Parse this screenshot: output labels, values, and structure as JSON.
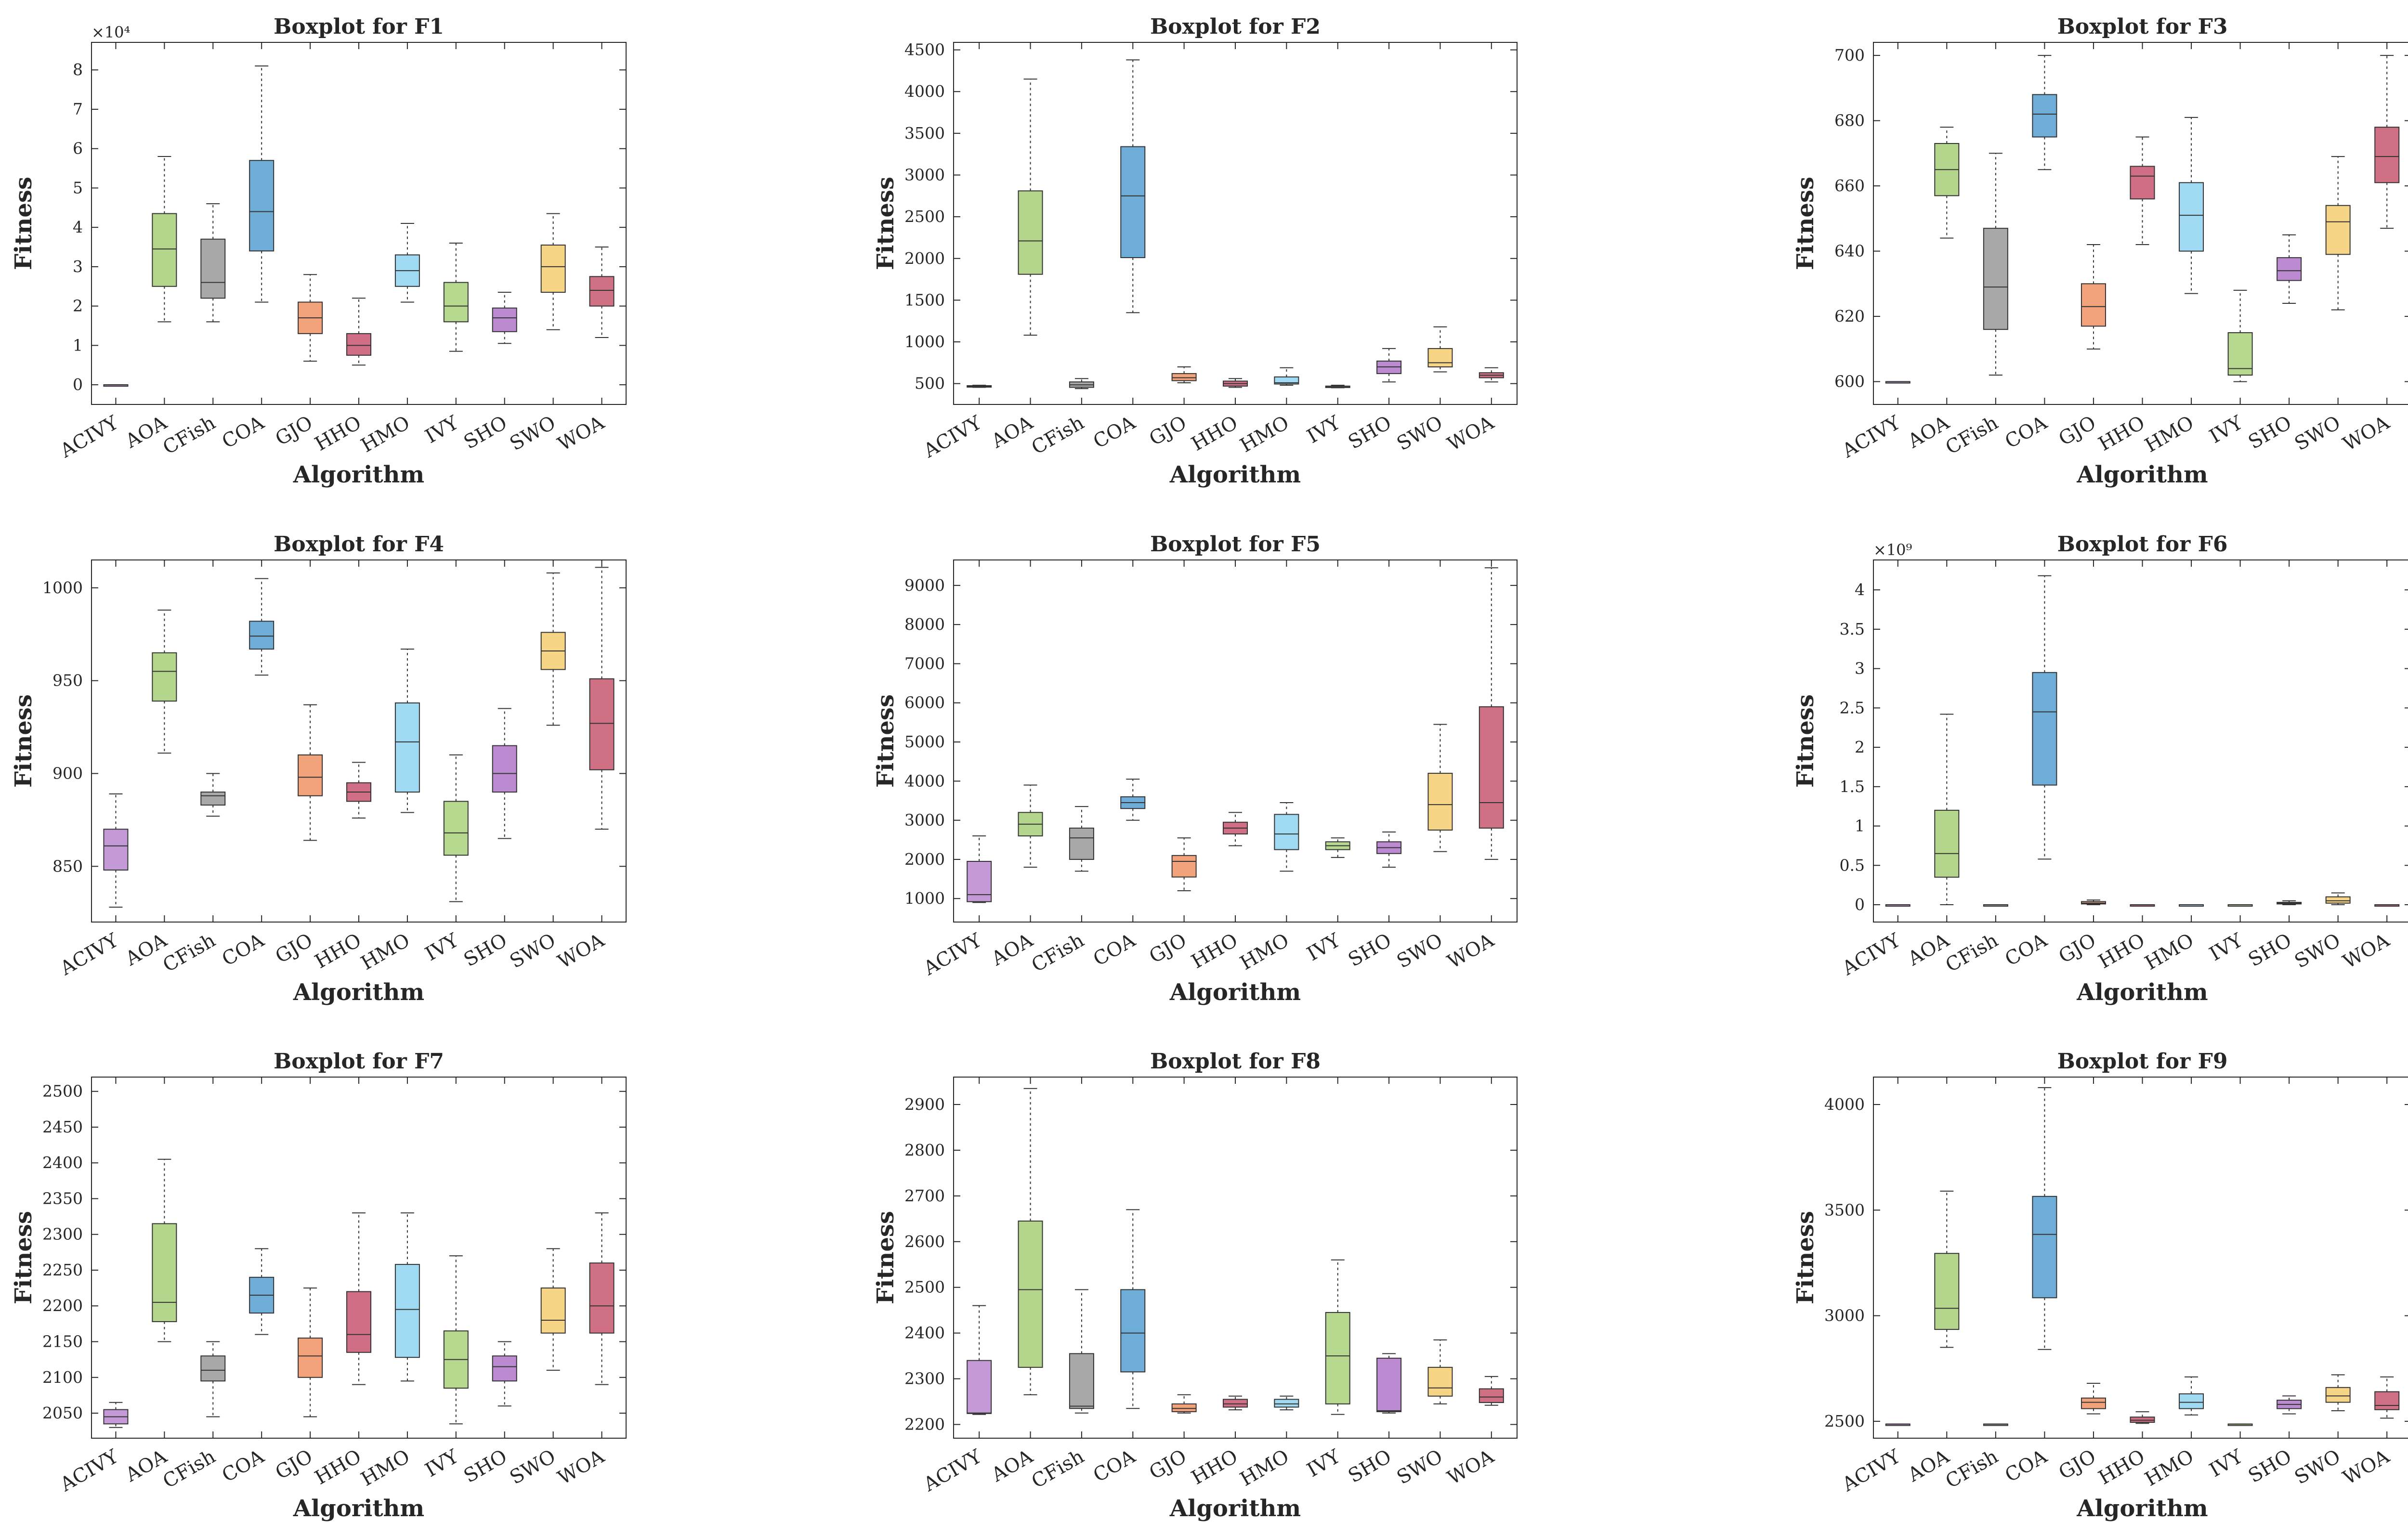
{
  "figure": {
    "xlabel": "Algorithm",
    "ylabel": "Fitness"
  },
  "colors": {
    "ACIVY": "#c49ad6",
    "AOA": "#b4d58c",
    "CFish": "#a8a8a8",
    "COA": "#6fadd9",
    "GJO": "#f2a37c",
    "HHO": "#cf6e84",
    "HMO": "#9fdaf2",
    "IVY": "#b6d88f",
    "SHO": "#bb8ad0",
    "SWO": "#f7d587",
    "WOA": "#cf7085"
  },
  "chart_data": [
    {
      "type": "boxplot",
      "title": "Boxplot for F1",
      "xlabel": "Algorithm",
      "ylabel": "Fitness",
      "categories": [
        "ACIVY",
        "AOA",
        "CFish",
        "COA",
        "GJO",
        "HHO",
        "HMO",
        "IVY",
        "SHO",
        "SWO",
        "WOA"
      ],
      "scale_label": "×10⁴",
      "ylim": [
        -0.5,
        8.7
      ],
      "yticks": [
        0,
        1,
        2,
        3,
        4,
        5,
        6,
        7,
        8
      ],
      "ytick_labels": [
        "0",
        "1",
        "2",
        "3",
        "4",
        "5",
        "6",
        "7",
        "8"
      ],
      "boxes": [
        {
          "min": 0,
          "q1": 0,
          "median": 0,
          "q3": 0,
          "max": 0
        },
        {
          "min": 1.6,
          "q1": 2.5,
          "median": 3.45,
          "q3": 4.35,
          "max": 5.8
        },
        {
          "min": 1.6,
          "q1": 2.2,
          "median": 2.6,
          "q3": 3.7,
          "max": 4.6
        },
        {
          "min": 2.1,
          "q1": 3.4,
          "median": 4.4,
          "q3": 5.7,
          "max": 8.1
        },
        {
          "min": 0.6,
          "q1": 1.3,
          "median": 1.7,
          "q3": 2.1,
          "max": 2.8
        },
        {
          "min": 0.5,
          "q1": 0.75,
          "median": 1.0,
          "q3": 1.3,
          "max": 2.2
        },
        {
          "min": 2.1,
          "q1": 2.5,
          "median": 2.9,
          "q3": 3.3,
          "max": 4.1
        },
        {
          "min": 0.85,
          "q1": 1.6,
          "median": 2.0,
          "q3": 2.6,
          "max": 3.6
        },
        {
          "min": 1.05,
          "q1": 1.35,
          "median": 1.7,
          "q3": 1.95,
          "max": 2.35
        },
        {
          "min": 1.4,
          "q1": 2.35,
          "median": 3.0,
          "q3": 3.55,
          "max": 4.35
        },
        {
          "min": 1.2,
          "q1": 2.0,
          "median": 2.4,
          "q3": 2.75,
          "max": 3.5
        }
      ]
    },
    {
      "type": "boxplot",
      "title": "Boxplot for F2",
      "xlabel": "Algorithm",
      "ylabel": "Fitness",
      "categories": [
        "ACIVY",
        "AOA",
        "CFish",
        "COA",
        "GJO",
        "HHO",
        "HMO",
        "IVY",
        "SHO",
        "SWO",
        "WOA"
      ],
      "scale_label": "",
      "ylim": [
        250,
        4590
      ],
      "yticks": [
        500,
        1000,
        1500,
        2000,
        2500,
        3000,
        3500,
        4000,
        4500
      ],
      "ytick_labels": [
        "500",
        "1000",
        "1500",
        "2000",
        "2500",
        "3000",
        "3500",
        "4000",
        "4500"
      ],
      "boxes": [
        {
          "min": 455,
          "q1": 460,
          "median": 468,
          "q3": 475,
          "max": 480
        },
        {
          "min": 1080,
          "q1": 1810,
          "median": 2210,
          "q3": 2810,
          "max": 4150
        },
        {
          "min": 440,
          "q1": 455,
          "median": 485,
          "q3": 520,
          "max": 560
        },
        {
          "min": 1350,
          "q1": 2010,
          "median": 2750,
          "q3": 3340,
          "max": 4380
        },
        {
          "min": 510,
          "q1": 535,
          "median": 570,
          "q3": 620,
          "max": 700
        },
        {
          "min": 455,
          "q1": 470,
          "median": 500,
          "q3": 530,
          "max": 560
        },
        {
          "min": 480,
          "q1": 495,
          "median": 510,
          "q3": 580,
          "max": 690
        },
        {
          "min": 450,
          "q1": 460,
          "median": 465,
          "q3": 470,
          "max": 480
        },
        {
          "min": 520,
          "q1": 620,
          "median": 700,
          "q3": 770,
          "max": 920
        },
        {
          "min": 640,
          "q1": 700,
          "median": 750,
          "q3": 920,
          "max": 1180
        },
        {
          "min": 520,
          "q1": 570,
          "median": 600,
          "q3": 630,
          "max": 690
        }
      ]
    },
    {
      "type": "boxplot",
      "title": "Boxplot for F3",
      "xlabel": "Algorithm",
      "ylabel": "Fitness",
      "categories": [
        "ACIVY",
        "AOA",
        "CFish",
        "COA",
        "GJO",
        "HHO",
        "HMO",
        "IVY",
        "SHO",
        "SWO",
        "WOA"
      ],
      "scale_label": "",
      "ylim": [
        593,
        704
      ],
      "yticks": [
        600,
        620,
        640,
        660,
        680,
        700
      ],
      "ytick_labels": [
        "600",
        "620",
        "640",
        "660",
        "680",
        "700"
      ],
      "boxes": [
        {
          "min": 600,
          "q1": 600,
          "median": 600,
          "q3": 600,
          "max": 600
        },
        {
          "min": 644,
          "q1": 657,
          "median": 665,
          "q3": 673,
          "max": 678
        },
        {
          "min": 602,
          "q1": 616,
          "median": 629,
          "q3": 647,
          "max": 670
        },
        {
          "min": 665,
          "q1": 675,
          "median": 682,
          "q3": 688,
          "max": 700
        },
        {
          "min": 610,
          "q1": 617,
          "median": 623,
          "q3": 630,
          "max": 642
        },
        {
          "min": 642,
          "q1": 656,
          "median": 663,
          "q3": 666,
          "max": 675
        },
        {
          "min": 627,
          "q1": 640,
          "median": 651,
          "q3": 661,
          "max": 681
        },
        {
          "min": 600,
          "q1": 602,
          "median": 604,
          "q3": 615,
          "max": 628
        },
        {
          "min": 624,
          "q1": 631,
          "median": 634,
          "q3": 638,
          "max": 645
        },
        {
          "min": 622,
          "q1": 639,
          "median": 649,
          "q3": 654,
          "max": 669
        },
        {
          "min": 647,
          "q1": 661,
          "median": 669,
          "q3": 678,
          "max": 700
        }
      ]
    },
    {
      "type": "boxplot",
      "title": "Boxplot for F4",
      "xlabel": "Algorithm",
      "ylabel": "Fitness",
      "categories": [
        "ACIVY",
        "AOA",
        "CFish",
        "COA",
        "GJO",
        "HHO",
        "HMO",
        "IVY",
        "SHO",
        "SWO",
        "WOA"
      ],
      "scale_label": "",
      "ylim": [
        820,
        1015
      ],
      "yticks": [
        850,
        900,
        950,
        1000
      ],
      "ytick_labels": [
        "850",
        "900",
        "950",
        "1000"
      ],
      "boxes": [
        {
          "min": 828,
          "q1": 848,
          "median": 861,
          "q3": 870,
          "max": 889
        },
        {
          "min": 911,
          "q1": 939,
          "median": 955,
          "q3": 965,
          "max": 988
        },
        {
          "min": 877,
          "q1": 883,
          "median": 888,
          "q3": 890,
          "max": 900
        },
        {
          "min": 953,
          "q1": 967,
          "median": 974,
          "q3": 982,
          "max": 1005
        },
        {
          "min": 864,
          "q1": 888,
          "median": 898,
          "q3": 910,
          "max": 937
        },
        {
          "min": 876,
          "q1": 885,
          "median": 890,
          "q3": 895,
          "max": 906
        },
        {
          "min": 879,
          "q1": 890,
          "median": 917,
          "q3": 938,
          "max": 967
        },
        {
          "min": 831,
          "q1": 856,
          "median": 868,
          "q3": 885,
          "max": 910
        },
        {
          "min": 865,
          "q1": 890,
          "median": 900,
          "q3": 915,
          "max": 935
        },
        {
          "min": 926,
          "q1": 956,
          "median": 966,
          "q3": 976,
          "max": 1008
        },
        {
          "min": 870,
          "q1": 902,
          "median": 927,
          "q3": 951,
          "max": 1011
        }
      ]
    },
    {
      "type": "boxplot",
      "title": "Boxplot for F5",
      "xlabel": "Algorithm",
      "ylabel": "Fitness",
      "categories": [
        "ACIVY",
        "AOA",
        "CFish",
        "COA",
        "GJO",
        "HHO",
        "HMO",
        "IVY",
        "SHO",
        "SWO",
        "WOA"
      ],
      "scale_label": "",
      "ylim": [
        400,
        9650
      ],
      "yticks": [
        1000,
        2000,
        3000,
        4000,
        5000,
        6000,
        7000,
        8000,
        9000
      ],
      "ytick_labels": [
        "1000",
        "2000",
        "3000",
        "4000",
        "5000",
        "6000",
        "7000",
        "8000",
        "9000"
      ],
      "boxes": [
        {
          "min": 900,
          "q1": 920,
          "median": 1100,
          "q3": 1950,
          "max": 2600
        },
        {
          "min": 1800,
          "q1": 2600,
          "median": 2900,
          "q3": 3200,
          "max": 3900
        },
        {
          "min": 1700,
          "q1": 2000,
          "median": 2550,
          "q3": 2800,
          "max": 3350
        },
        {
          "min": 3000,
          "q1": 3300,
          "median": 3450,
          "q3": 3600,
          "max": 4050
        },
        {
          "min": 1200,
          "q1": 1550,
          "median": 1950,
          "q3": 2100,
          "max": 2550
        },
        {
          "min": 2350,
          "q1": 2650,
          "median": 2800,
          "q3": 2950,
          "max": 3200
        },
        {
          "min": 1700,
          "q1": 2250,
          "median": 2650,
          "q3": 3150,
          "max": 3450
        },
        {
          "min": 2050,
          "q1": 2250,
          "median": 2350,
          "q3": 2450,
          "max": 2550
        },
        {
          "min": 1800,
          "q1": 2150,
          "median": 2300,
          "q3": 2450,
          "max": 2700
        },
        {
          "min": 2200,
          "q1": 2750,
          "median": 3400,
          "q3": 4200,
          "max": 5450
        },
        {
          "min": 2000,
          "q1": 2800,
          "median": 3450,
          "q3": 5900,
          "max": 9450
        }
      ]
    },
    {
      "type": "boxplot",
      "title": "Boxplot for F6",
      "xlabel": "Algorithm",
      "ylabel": "Fitness",
      "categories": [
        "ACIVY",
        "AOA",
        "CFish",
        "COA",
        "GJO",
        "HHO",
        "HMO",
        "IVY",
        "SHO",
        "SWO",
        "WOA"
      ],
      "scale_label": "×10⁹",
      "ylim": [
        -0.22,
        4.38
      ],
      "yticks": [
        0,
        0.5,
        1,
        1.5,
        2,
        2.5,
        3,
        3.5,
        4
      ],
      "ytick_labels": [
        "0",
        "0.5",
        "1",
        "1.5",
        "2",
        "2.5",
        "3",
        "3.5",
        "4"
      ],
      "boxes": [
        {
          "min": 0,
          "q1": 0,
          "median": 0,
          "q3": 0,
          "max": 0
        },
        {
          "min": 0,
          "q1": 0.35,
          "median": 0.65,
          "q3": 1.2,
          "max": 2.42
        },
        {
          "min": 0,
          "q1": 0,
          "median": 0,
          "q3": 0,
          "max": 0
        },
        {
          "min": 0.58,
          "q1": 1.52,
          "median": 2.45,
          "q3": 2.95,
          "max": 4.18
        },
        {
          "min": 0,
          "q1": 0.01,
          "median": 0.02,
          "q3": 0.04,
          "max": 0.06
        },
        {
          "min": 0,
          "q1": 0,
          "median": 0,
          "q3": 0,
          "max": 0
        },
        {
          "min": 0,
          "q1": 0,
          "median": 0,
          "q3": 0,
          "max": 0
        },
        {
          "min": 0,
          "q1": 0,
          "median": 0,
          "q3": 0,
          "max": 0
        },
        {
          "min": 0,
          "q1": 0.01,
          "median": 0.02,
          "q3": 0.03,
          "max": 0.05
        },
        {
          "min": 0,
          "q1": 0.02,
          "median": 0.05,
          "q3": 0.1,
          "max": 0.15
        },
        {
          "min": 0,
          "q1": 0,
          "median": 0,
          "q3": 0,
          "max": 0
        }
      ]
    },
    {
      "type": "boxplot",
      "title": "Boxplot for F7",
      "xlabel": "Algorithm",
      "ylabel": "Fitness",
      "categories": [
        "ACIVY",
        "AOA",
        "CFish",
        "COA",
        "GJO",
        "HHO",
        "HMO",
        "IVY",
        "SHO",
        "SWO",
        "WOA"
      ],
      "scale_label": "",
      "ylim": [
        2015,
        2520
      ],
      "yticks": [
        2050,
        2100,
        2150,
        2200,
        2250,
        2300,
        2350,
        2400,
        2450,
        2500
      ],
      "ytick_labels": [
        "2050",
        "2100",
        "2150",
        "2200",
        "2250",
        "2300",
        "2350",
        "2400",
        "2450",
        "2500"
      ],
      "boxes": [
        {
          "min": 2030,
          "q1": 2035,
          "median": 2045,
          "q3": 2055,
          "max": 2065
        },
        {
          "min": 2150,
          "q1": 2178,
          "median": 2205,
          "q3": 2315,
          "max": 2405
        },
        {
          "min": 2045,
          "q1": 2095,
          "median": 2110,
          "q3": 2130,
          "max": 2150
        },
        {
          "min": 2160,
          "q1": 2190,
          "median": 2215,
          "q3": 2240,
          "max": 2280
        },
        {
          "min": 2045,
          "q1": 2100,
          "median": 2130,
          "q3": 2155,
          "max": 2225
        },
        {
          "min": 2090,
          "q1": 2135,
          "median": 2160,
          "q3": 2220,
          "max": 2330
        },
        {
          "min": 2095,
          "q1": 2128,
          "median": 2195,
          "q3": 2258,
          "max": 2330
        },
        {
          "min": 2035,
          "q1": 2085,
          "median": 2125,
          "q3": 2165,
          "max": 2270
        },
        {
          "min": 2060,
          "q1": 2095,
          "median": 2115,
          "q3": 2130,
          "max": 2150
        },
        {
          "min": 2110,
          "q1": 2162,
          "median": 2180,
          "q3": 2225,
          "max": 2280
        },
        {
          "min": 2090,
          "q1": 2162,
          "median": 2200,
          "q3": 2260,
          "max": 2330
        }
      ]
    },
    {
      "type": "boxplot",
      "title": "Boxplot for F8",
      "xlabel": "Algorithm",
      "ylabel": "Fitness",
      "categories": [
        "ACIVY",
        "AOA",
        "CFish",
        "COA",
        "GJO",
        "HHO",
        "HMO",
        "IVY",
        "SHO",
        "SWO",
        "WOA"
      ],
      "scale_label": "",
      "ylim": [
        2170,
        2960
      ],
      "yticks": [
        2200,
        2300,
        2400,
        2500,
        2600,
        2700,
        2800,
        2900
      ],
      "ytick_labels": [
        "2200",
        "2300",
        "2400",
        "2500",
        "2600",
        "2700",
        "2800",
        "2900"
      ],
      "boxes": [
        {
          "min": 2222,
          "q1": 2224,
          "median": 2225,
          "q3": 2340,
          "max": 2460
        },
        {
          "min": 2265,
          "q1": 2325,
          "median": 2495,
          "q3": 2645,
          "max": 2935
        },
        {
          "min": 2225,
          "q1": 2235,
          "median": 2240,
          "q3": 2355,
          "max": 2495
        },
        {
          "min": 2235,
          "q1": 2315,
          "median": 2400,
          "q3": 2495,
          "max": 2670
        },
        {
          "min": 2225,
          "q1": 2228,
          "median": 2235,
          "q3": 2245,
          "max": 2265
        },
        {
          "min": 2232,
          "q1": 2238,
          "median": 2245,
          "q3": 2255,
          "max": 2262
        },
        {
          "min": 2232,
          "q1": 2238,
          "median": 2245,
          "q3": 2255,
          "max": 2262
        },
        {
          "min": 2222,
          "q1": 2245,
          "median": 2350,
          "q3": 2445,
          "max": 2560
        },
        {
          "min": 2225,
          "q1": 2228,
          "median": 2230,
          "q3": 2345,
          "max": 2355
        },
        {
          "min": 2245,
          "q1": 2262,
          "median": 2280,
          "q3": 2325,
          "max": 2385
        },
        {
          "min": 2242,
          "q1": 2248,
          "median": 2260,
          "q3": 2278,
          "max": 2305
        }
      ]
    },
    {
      "type": "boxplot",
      "title": "Boxplot for F9",
      "xlabel": "Algorithm",
      "ylabel": "Fitness",
      "categories": [
        "ACIVY",
        "AOA",
        "CFish",
        "COA",
        "GJO",
        "HHO",
        "HMO",
        "IVY",
        "SHO",
        "SWO",
        "WOA"
      ],
      "scale_label": "",
      "ylim": [
        2420,
        4130
      ],
      "yticks": [
        2500,
        3000,
        3500,
        4000
      ],
      "ytick_labels": [
        "2500",
        "3000",
        "3500",
        "4000"
      ],
      "boxes": [
        {
          "min": 2487,
          "q1": 2487,
          "median": 2487,
          "q3": 2487,
          "max": 2487
        },
        {
          "min": 2850,
          "q1": 2935,
          "median": 3035,
          "q3": 3295,
          "max": 3590
        },
        {
          "min": 2487,
          "q1": 2487,
          "median": 2487,
          "q3": 2487,
          "max": 2487
        },
        {
          "min": 2840,
          "q1": 3085,
          "median": 3385,
          "q3": 3565,
          "max": 4080
        },
        {
          "min": 2535,
          "q1": 2560,
          "median": 2590,
          "q3": 2610,
          "max": 2680
        },
        {
          "min": 2490,
          "q1": 2495,
          "median": 2505,
          "q3": 2520,
          "max": 2545
        },
        {
          "min": 2530,
          "q1": 2560,
          "median": 2590,
          "q3": 2630,
          "max": 2710
        },
        {
          "min": 2487,
          "q1": 2487,
          "median": 2487,
          "q3": 2487,
          "max": 2487
        },
        {
          "min": 2535,
          "q1": 2560,
          "median": 2580,
          "q3": 2600,
          "max": 2620
        },
        {
          "min": 2550,
          "q1": 2590,
          "median": 2620,
          "q3": 2660,
          "max": 2720
        },
        {
          "min": 2515,
          "q1": 2555,
          "median": 2575,
          "q3": 2640,
          "max": 2710
        }
      ]
    }
  ]
}
